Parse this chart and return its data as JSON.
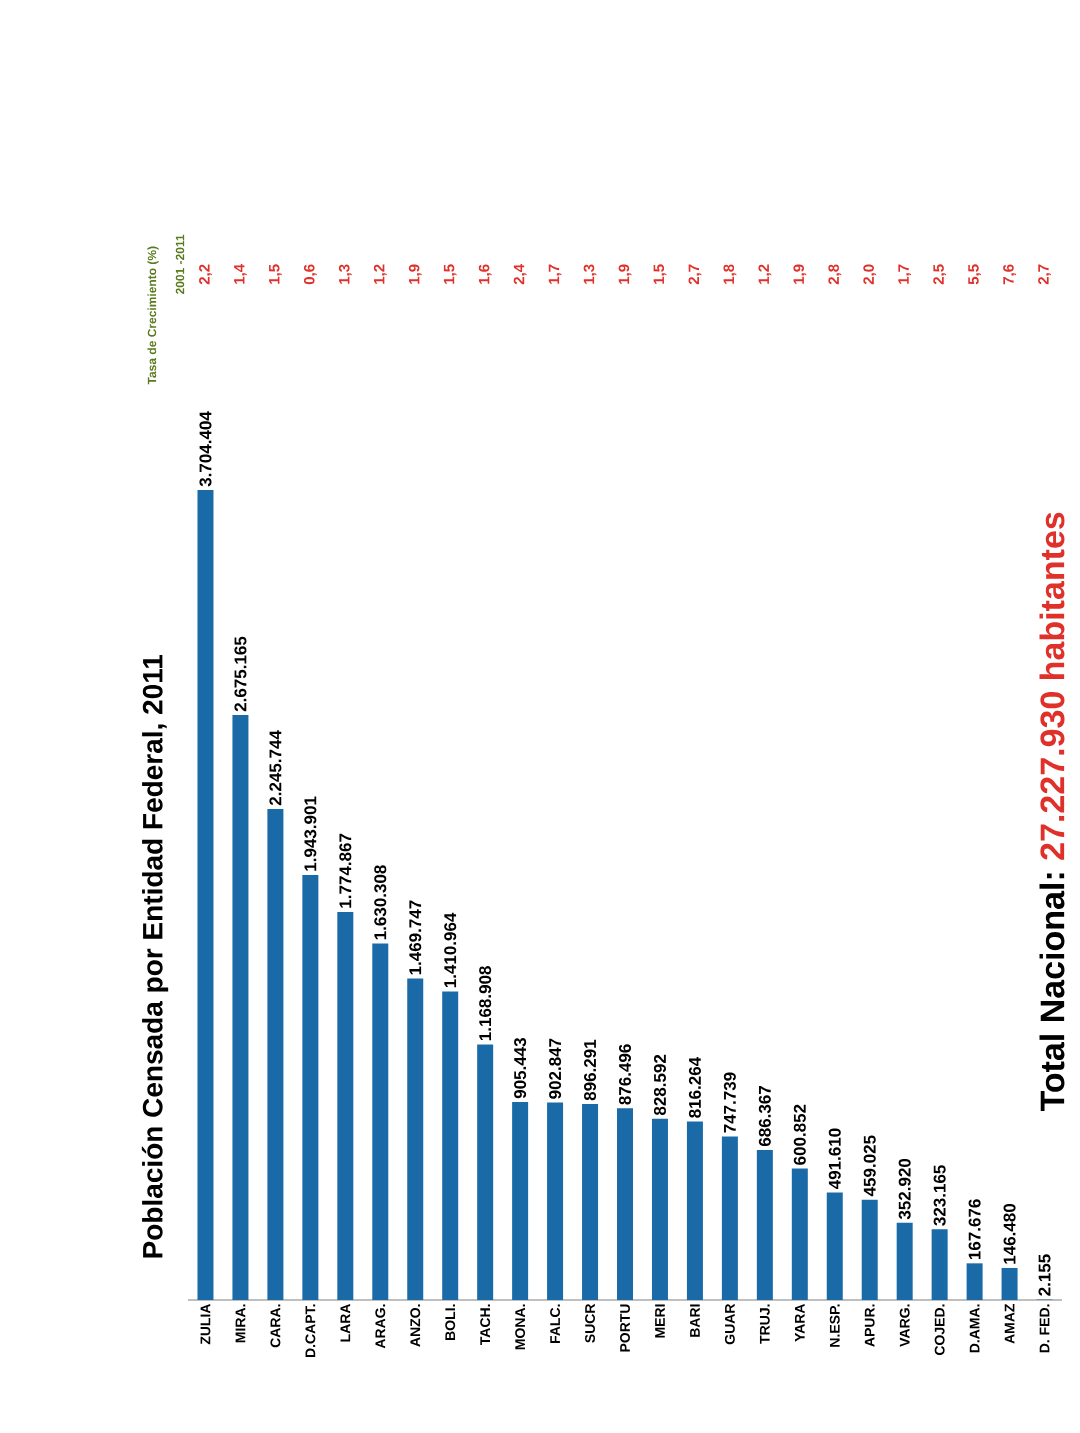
{
  "chart_data": {
    "type": "bar",
    "title": "Población Censada por Entidad Federal, 2011",
    "categories": [
      "ZULIA",
      "MIRA.",
      "CARA.",
      "D.CAPT.",
      "LARA",
      "ARAG.",
      "ANZO.",
      "BOLI.",
      "TACH.",
      "MONA.",
      "FALC.",
      "SUCR",
      "PORTU",
      "MERI",
      "BARI",
      "GUAR",
      "TRUJ.",
      "YARA",
      "N.ESP.",
      "APUR.",
      "VARG.",
      "COJED.",
      "D.AMA.",
      "AMAZ",
      "D. FED."
    ],
    "values": [
      3704404,
      2675165,
      2245744,
      1943901,
      1774867,
      1630308,
      1469747,
      1410964,
      1168908,
      905443,
      902847,
      896291,
      876496,
      828592,
      816264,
      747739,
      686367,
      600852,
      491610,
      459025,
      352920,
      323165,
      167676,
      146480,
      2155
    ],
    "value_labels": [
      "3.704.404",
      "2.675.165",
      "2.245.744",
      "1.943.901",
      "1.774.867",
      "1.630.308",
      "1.469.747",
      "1.410.964",
      "1.168.908",
      "905.443",
      "902.847",
      "896.291",
      "876.496",
      "828.592",
      "816.264",
      "747.739",
      "686.367",
      "600.852",
      "491.610",
      "459.025",
      "352.920",
      "323.165",
      "167.676",
      "146.480",
      "2.155"
    ],
    "color": "#1a6aa8",
    "tick_labels": "x",
    "annotations": [
      "Tasa de Crecimiento (%)",
      "2001 -2011",
      "2,2",
      "1,4",
      "1,5",
      "0,6",
      "1,3",
      "1,2",
      "1,9",
      "1,5",
      "1,6",
      "2,4",
      "1,7",
      "1,3",
      "1,9",
      "1,5",
      "2,7",
      "1,8",
      "1,2",
      "1,9",
      "2,8",
      "2,0",
      "1,7",
      "2,5",
      "5,5",
      "7,6",
      "2,7",
      "Total Nacional:",
      "27.227.930 habitantes"
    ]
  }
}
